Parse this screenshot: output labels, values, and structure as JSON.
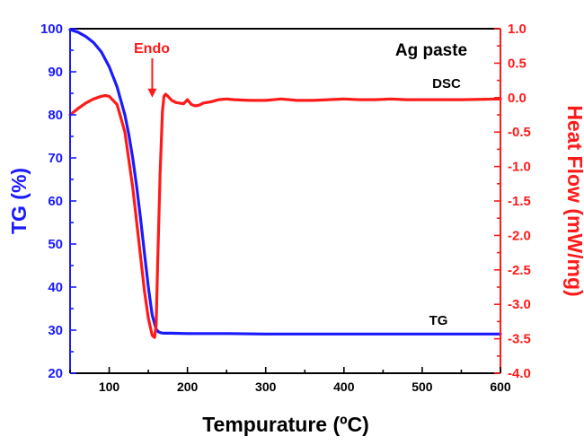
{
  "chart_data": {
    "type": "line",
    "title": "Ag paste",
    "xlabel": "Tempurature (ºC)",
    "ylabel_left": "TG (%)",
    "ylabel_right": "Heat Flow (mW/mg)",
    "xlim": [
      50,
      600
    ],
    "ylim_left": [
      20,
      100
    ],
    "ylim_right": [
      -4.0,
      1.0
    ],
    "x_ticks": [
      100,
      200,
      300,
      400,
      500,
      600
    ],
    "y_left_ticks": [
      20,
      30,
      40,
      50,
      60,
      70,
      80,
      90,
      100
    ],
    "y_right_ticks": [
      "1.0",
      "0.5",
      "0.0",
      "-0.5",
      "-1.0",
      "-1.5",
      "-2.0",
      "-2.5",
      "-3.0",
      "-3.5",
      "-4.0"
    ],
    "annotation": {
      "text": "Endo",
      "x": 155,
      "arrow_to_y_right": 0.0
    },
    "series": [
      {
        "name": "TG",
        "label": "TG",
        "axis": "left",
        "color": "#1a1aff",
        "x": [
          50,
          60,
          70,
          80,
          90,
          100,
          110,
          120,
          125,
          130,
          135,
          140,
          145,
          150,
          155,
          160,
          163,
          166,
          170,
          180,
          200,
          250,
          300,
          400,
          500,
          600
        ],
        "y": [
          99.8,
          99.2,
          98.2,
          96.8,
          94.6,
          91.2,
          86.5,
          80.0,
          75.5,
          70.0,
          63.5,
          56.0,
          48.0,
          40.0,
          33.5,
          30.2,
          29.6,
          29.4,
          29.3,
          29.3,
          29.2,
          29.2,
          29.1,
          29.1,
          29.1,
          29.1
        ]
      },
      {
        "name": "DSC",
        "label": "DSC",
        "axis": "right",
        "color": "#ff1a1a",
        "x": [
          50,
          60,
          70,
          80,
          90,
          95,
          100,
          110,
          120,
          130,
          140,
          145,
          150,
          155,
          158,
          160,
          162,
          165,
          168,
          170,
          172,
          175,
          180,
          185,
          190,
          195,
          200,
          205,
          210,
          215,
          220,
          230,
          240,
          250,
          260,
          280,
          300,
          320,
          340,
          360,
          380,
          400,
          420,
          440,
          460,
          480,
          500,
          550,
          600
        ],
        "y": [
          -0.25,
          -0.16,
          -0.08,
          -0.02,
          0.02,
          0.03,
          0.02,
          -0.1,
          -0.5,
          -1.3,
          -2.3,
          -2.8,
          -3.2,
          -3.45,
          -3.48,
          -3.3,
          -2.4,
          -1.1,
          -0.2,
          0.02,
          0.05,
          0.02,
          -0.04,
          -0.07,
          -0.08,
          -0.09,
          -0.03,
          -0.1,
          -0.12,
          -0.11,
          -0.08,
          -0.06,
          -0.03,
          -0.02,
          -0.03,
          -0.04,
          -0.04,
          -0.02,
          -0.04,
          -0.04,
          -0.03,
          -0.02,
          -0.03,
          -0.03,
          -0.02,
          -0.03,
          -0.03,
          -0.03,
          -0.02
        ]
      }
    ]
  }
}
